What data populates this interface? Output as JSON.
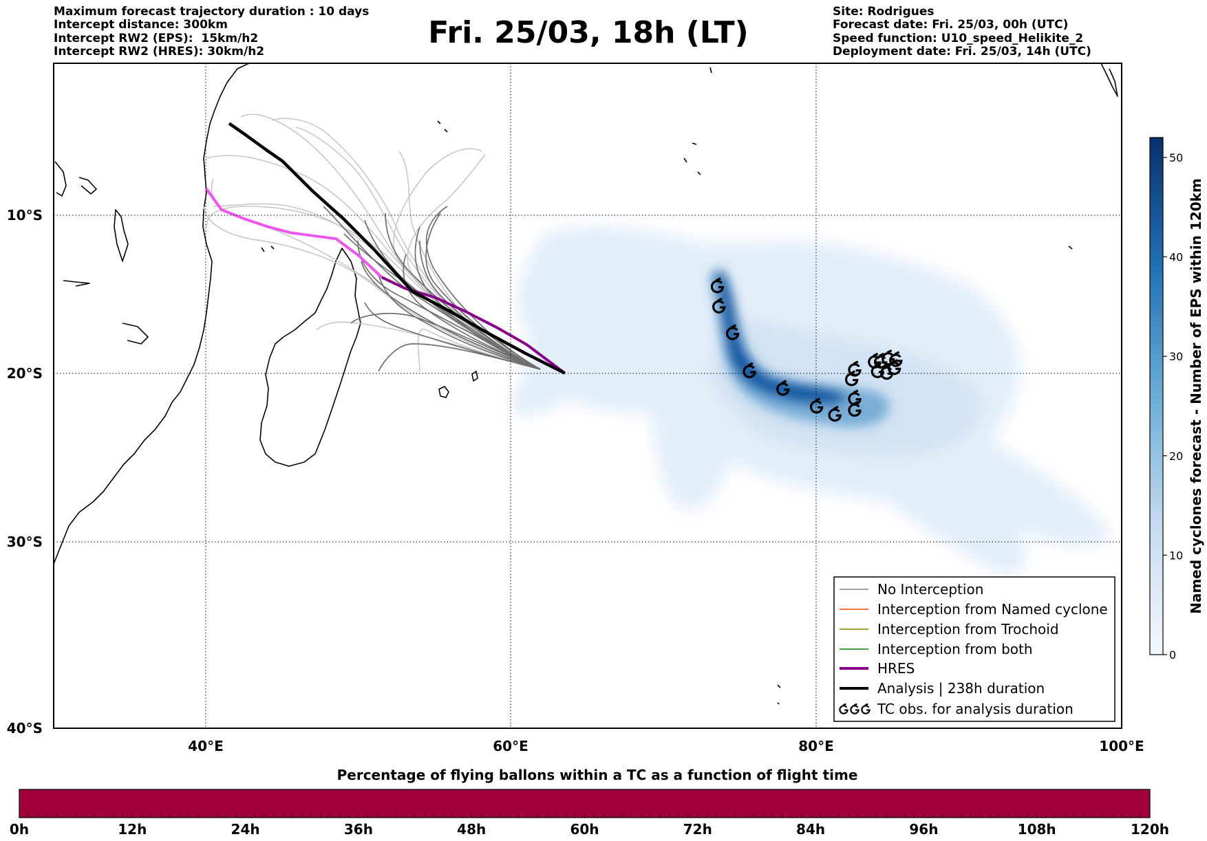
{
  "header_left": [
    "Maximum forecast trajectory duration : 10 days",
    "Intercept distance: 300km",
    "Intercept RW2 (EPS):  15km/h2",
    "Intercept RW2 (HRES): 30km/h2"
  ],
  "header_right": [
    "Site: Rodrigues",
    "Forecast date: Fri. 25/03, 00h (UTC)",
    "Speed function: U10_speed_Helikite_2",
    "Deployment date: Fri. 25/03, 14h (UTC)"
  ],
  "title": "Fri. 25/03, 18h (LT)",
  "map": {
    "lon_ticks": [
      "40°E",
      "60°E",
      "80°E",
      "100°E"
    ],
    "lat_ticks": [
      "10°S",
      "20°S",
      "30°S",
      "40°S"
    ],
    "lon_range": [
      30,
      100
    ],
    "lat_range": [
      -40,
      0.5
    ],
    "grid": "dotted"
  },
  "legend": {
    "items": [
      {
        "label": "No Interception",
        "color": "#808080",
        "style": "thin"
      },
      {
        "label": "Interception from Named cyclone",
        "color": "#ff4500",
        "style": "thin"
      },
      {
        "label": "Interception from Trochoid",
        "color": "#808000",
        "style": "thin"
      },
      {
        "label": "Interception from both",
        "color": "#008000",
        "style": "thin"
      },
      {
        "label": "HRES",
        "color": "#8b008b",
        "style": "thick"
      },
      {
        "label": "Analysis | 238h duration",
        "color": "#000000",
        "style": "thick"
      },
      {
        "label": "TC obs. for analysis duration",
        "color": "#000000",
        "style": "symbol"
      }
    ]
  },
  "colorbar": {
    "label": "Named cyclones forecast - Number of EPS within 120km",
    "ticks": [
      "0",
      "10",
      "20",
      "30",
      "40",
      "50"
    ],
    "min": 0,
    "max": 52,
    "color_low": "#e3eef9",
    "color_high": "#08306b"
  },
  "bottom_bar": {
    "title": "Percentage of flying ballons within a TC as a function of flight time",
    "ticks": [
      "0h",
      "12h",
      "24h",
      "36h",
      "48h",
      "60h",
      "72h",
      "84h",
      "96h",
      "108h",
      "120h"
    ],
    "color": "#a0003c"
  },
  "tracks": {
    "launch_point": [
      63.5,
      -19.7
    ],
    "analysis": [
      [
        41.5,
        -3.5
      ],
      [
        42.5,
        -4.2
      ],
      [
        44,
        -5.3
      ],
      [
        45,
        -6
      ],
      [
        47,
        -8
      ],
      [
        49,
        -9.8
      ],
      [
        51,
        -11.8
      ],
      [
        53.5,
        -14.5
      ],
      [
        56,
        -15.8
      ],
      [
        58.5,
        -17.2
      ],
      [
        61,
        -18.5
      ],
      [
        63.5,
        -19.7
      ]
    ],
    "hres": [
      [
        40,
        -7.8
      ],
      [
        41,
        -9.2
      ],
      [
        42.5,
        -9.8
      ],
      [
        44,
        -10.3
      ],
      [
        45.5,
        -10.7
      ],
      [
        47,
        -10.9
      ],
      [
        48.5,
        -11.1
      ],
      [
        50,
        -12.2
      ],
      [
        51.5,
        -13.6
      ],
      [
        53,
        -14.3
      ],
      [
        55,
        -14.9
      ],
      [
        57,
        -15.8
      ],
      [
        59,
        -16.8
      ],
      [
        61,
        -17.9
      ],
      [
        63.5,
        -19.7
      ]
    ],
    "tc_obs": [
      [
        73.5,
        -14.2
      ],
      [
        73.6,
        -15.5
      ],
      [
        74.5,
        -17.2
      ],
      [
        75.6,
        -19.6
      ],
      [
        77.8,
        -20.7
      ],
      [
        80,
        -21.8
      ],
      [
        81.2,
        -22.3
      ],
      [
        82.5,
        -22
      ],
      [
        82.5,
        -21.3
      ],
      [
        82.3,
        -20.1
      ],
      [
        82.5,
        -19.5
      ],
      [
        83.8,
        -19
      ],
      [
        84.2,
        -19
      ],
      [
        84.7,
        -18.8
      ],
      [
        85.2,
        -18.9
      ],
      [
        84,
        -19.6
      ],
      [
        84.6,
        -19.7
      ],
      [
        85.1,
        -19.4
      ]
    ]
  }
}
